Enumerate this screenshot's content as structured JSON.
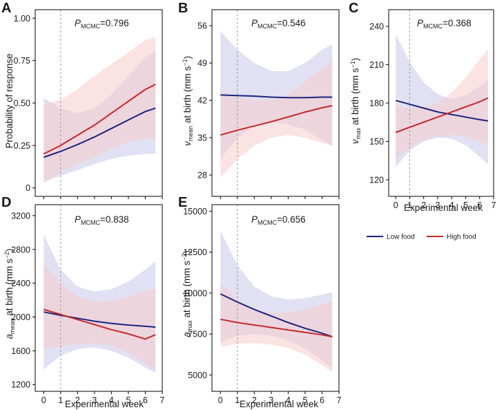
{
  "figure": {
    "legend": [
      {
        "label": "Low food",
        "color": "#1a237e"
      },
      {
        "label": "High food",
        "color": "#c62828"
      }
    ],
    "band_colors": {
      "low": "#c8c8ea",
      "high": "#f7cccc"
    },
    "ref_line_x": 1
  },
  "chart_data": [
    {
      "id": "A",
      "type": "line",
      "panel_label": "A",
      "pmcmc": {
        "symbol": "P",
        "subscript": "MCMC",
        "value": "=0.796"
      },
      "ylabel": {
        "parts": [
          {
            "t": "Probability of response",
            "style": "n"
          }
        ]
      },
      "xlabel": "",
      "xlim": [
        -0.5,
        7.0
      ],
      "ylim": [
        -0.05,
        1.05
      ],
      "xticks": [],
      "yticks": [
        0,
        0.25,
        0.5,
        0.75,
        1.0
      ],
      "ytick_labels": [
        "0",
        "0.25",
        "0.50",
        "0.75",
        "1.00"
      ],
      "x": [
        0,
        1,
        2,
        3,
        4,
        5,
        6,
        6.6
      ],
      "series": [
        {
          "name": "Low food",
          "values": [
            0.18,
            0.215,
            0.255,
            0.3,
            0.35,
            0.4,
            0.45,
            0.47
          ],
          "lower": [
            0.035,
            0.07,
            0.105,
            0.14,
            0.17,
            0.19,
            0.2,
            0.2
          ],
          "upper": [
            0.53,
            0.47,
            0.44,
            0.47,
            0.55,
            0.66,
            0.77,
            0.81
          ]
        },
        {
          "name": "High food",
          "values": [
            0.2,
            0.25,
            0.31,
            0.37,
            0.44,
            0.51,
            0.58,
            0.61
          ],
          "lower": [
            0.03,
            0.09,
            0.14,
            0.18,
            0.23,
            0.27,
            0.29,
            0.29
          ],
          "upper": [
            0.49,
            0.52,
            0.58,
            0.66,
            0.73,
            0.8,
            0.87,
            0.89
          ]
        }
      ]
    },
    {
      "id": "B",
      "type": "line",
      "panel_label": "B",
      "pmcmc": {
        "symbol": "P",
        "subscript": "MCMC",
        "value": "=0.546"
      },
      "ylabel": {
        "parts": [
          {
            "t": "v",
            "style": "i"
          },
          {
            "t": "mean",
            "style": "sub"
          },
          {
            "t": " at birth (mm s",
            "style": "n"
          },
          {
            "t": "−1",
            "style": "sup"
          },
          {
            "t": ")",
            "style": "n"
          }
        ]
      },
      "xlabel": "",
      "xlim": [
        -0.5,
        7.0
      ],
      "ylim": [
        24,
        59
      ],
      "xticks": [],
      "yticks": [
        28,
        35,
        42,
        49,
        56
      ],
      "ytick_labels": [
        "28",
        "35",
        "42",
        "49",
        "56"
      ],
      "x": [
        0,
        1,
        2,
        3,
        4,
        5,
        6,
        6.6
      ],
      "series": [
        {
          "name": "Low food",
          "values": [
            43.0,
            42.9,
            42.8,
            42.6,
            42.5,
            42.5,
            42.6,
            42.6
          ],
          "lower": [
            31.0,
            35.0,
            37.5,
            38.0,
            37.5,
            36.5,
            34.5,
            33.5
          ],
          "upper": [
            55.0,
            51.5,
            49.0,
            47.5,
            47.5,
            49.0,
            51.5,
            52.5
          ]
        },
        {
          "name": "High food",
          "values": [
            35.5,
            36.4,
            37.2,
            38.0,
            38.9,
            39.8,
            40.6,
            41.0
          ],
          "lower": [
            27.5,
            31.0,
            33.5,
            35.0,
            35.5,
            35.0,
            34.0,
            33.5
          ],
          "upper": [
            44.0,
            42.5,
            42.0,
            42.0,
            43.0,
            45.5,
            48.0,
            49.5
          ]
        }
      ]
    },
    {
      "id": "C",
      "type": "line",
      "panel_label": "C",
      "pmcmc": {
        "symbol": "P",
        "subscript": "MCMC",
        "value": "=0.368"
      },
      "ylabel": {
        "parts": [
          {
            "t": "v",
            "style": "i"
          },
          {
            "t": "max",
            "style": "sub"
          },
          {
            "t": " at birth (mm s",
            "style": "n"
          },
          {
            "t": "−1",
            "style": "sup"
          },
          {
            "t": ")",
            "style": "n"
          }
        ]
      },
      "xlabel": "Experimental week",
      "xlim": [
        -0.5,
        7.0
      ],
      "ylim": [
        107,
        253
      ],
      "xticks": [
        0,
        1,
        2,
        3,
        4,
        5,
        6,
        7
      ],
      "yticks": [
        120,
        150,
        180,
        210,
        240
      ],
      "ytick_labels": [
        "120",
        "150",
        "180",
        "210",
        "240"
      ],
      "x": [
        0,
        1,
        2,
        3,
        4,
        5,
        6,
        6.6
      ],
      "series": [
        {
          "name": "Low food",
          "values": [
            182,
            179,
            176,
            173,
            171,
            169,
            167,
            166
          ],
          "lower": [
            130,
            143,
            150,
            153,
            152,
            147,
            138,
            132
          ],
          "upper": [
            234,
            212,
            196,
            187,
            183,
            186,
            193,
            198
          ]
        },
        {
          "name": "High food",
          "values": [
            157,
            161,
            165,
            169,
            173,
            177,
            181,
            184
          ],
          "lower": [
            136,
            145,
            151,
            154,
            155,
            154,
            150,
            147
          ],
          "upper": [
            178,
            176,
            177,
            180,
            188,
            200,
            214,
            222
          ]
        }
      ]
    },
    {
      "id": "D",
      "type": "line",
      "panel_label": "D",
      "pmcmc": {
        "symbol": "P",
        "subscript": "MCMC",
        "value": "=0.838"
      },
      "ylabel": {
        "parts": [
          {
            "t": "a",
            "style": "i"
          },
          {
            "t": "mean",
            "style": "sub"
          },
          {
            "t": " at birth (mm s",
            "style": "n"
          },
          {
            "t": "−2",
            "style": "sup"
          },
          {
            "t": ")",
            "style": "n"
          }
        ]
      },
      "xlabel": "Experimental week",
      "xlim": [
        -0.5,
        7.0
      ],
      "ylim": [
        1120,
        3330
      ],
      "xticks": [
        0,
        1,
        2,
        3,
        4,
        5,
        6,
        7
      ],
      "yticks": [
        1200,
        1600,
        2000,
        2400,
        2800,
        3200
      ],
      "ytick_labels": [
        "1200",
        "1600",
        "2000",
        "2400",
        "2800",
        "3200"
      ],
      "x": [
        0,
        1,
        2,
        3,
        4,
        5,
        6,
        6.6
      ],
      "series": [
        {
          "name": "Low food",
          "values": [
            2060,
            2020,
            1985,
            1950,
            1925,
            1905,
            1890,
            1880
          ],
          "lower": [
            1380,
            1540,
            1620,
            1640,
            1600,
            1520,
            1400,
            1340
          ],
          "upper": [
            2980,
            2560,
            2360,
            2300,
            2330,
            2420,
            2560,
            2660
          ]
        },
        {
          "name": "High food",
          "values": [
            2090,
            2030,
            1970,
            1910,
            1850,
            1800,
            1740,
            1790
          ],
          "lower": [
            1620,
            1650,
            1680,
            1690,
            1660,
            1580,
            1450,
            1360
          ],
          "upper": [
            2640,
            2400,
            2250,
            2180,
            2190,
            2240,
            2310,
            2330
          ]
        }
      ]
    },
    {
      "id": "E",
      "type": "line",
      "panel_label": "E",
      "pmcmc": {
        "symbol": "P",
        "subscript": "MCMC",
        "value": "=0.656"
      },
      "ylabel": {
        "parts": [
          {
            "t": "a",
            "style": "i"
          },
          {
            "t": "max",
            "style": "sub"
          },
          {
            "t": " at birth (mm s",
            "style": "n"
          },
          {
            "t": "−2",
            "style": "sup"
          },
          {
            "t": ")",
            "style": "n"
          }
        ]
      },
      "xlabel": "Experimental week",
      "xlim": [
        -0.5,
        7.0
      ],
      "ylim": [
        4000,
        15400
      ],
      "xticks": [
        0,
        1,
        2,
        3,
        4,
        5,
        6,
        7
      ],
      "yticks": [
        5000,
        7500,
        10000,
        12500,
        15000
      ],
      "ytick_labels": [
        "5000",
        "7500",
        "10000",
        "12500",
        "15000"
      ],
      "x": [
        0,
        1,
        2,
        3,
        4,
        5,
        6,
        6.6
      ],
      "series": [
        {
          "name": "Low food",
          "values": [
            9950,
            9450,
            9000,
            8600,
            8200,
            7850,
            7550,
            7330
          ],
          "lower": [
            7000,
            7400,
            7500,
            7400,
            7100,
            6600,
            5900,
            5400
          ],
          "upper": [
            13800,
            11700,
            10400,
            9800,
            9600,
            9700,
            9900,
            10050
          ]
        },
        {
          "name": "High food",
          "values": [
            8400,
            8200,
            8050,
            7900,
            7750,
            7600,
            7450,
            7330
          ],
          "lower": [
            6700,
            6900,
            6950,
            6850,
            6650,
            6250,
            5600,
            5200
          ],
          "upper": [
            10600,
            9600,
            9000,
            8800,
            8800,
            9000,
            9300,
            9550
          ]
        }
      ]
    }
  ]
}
